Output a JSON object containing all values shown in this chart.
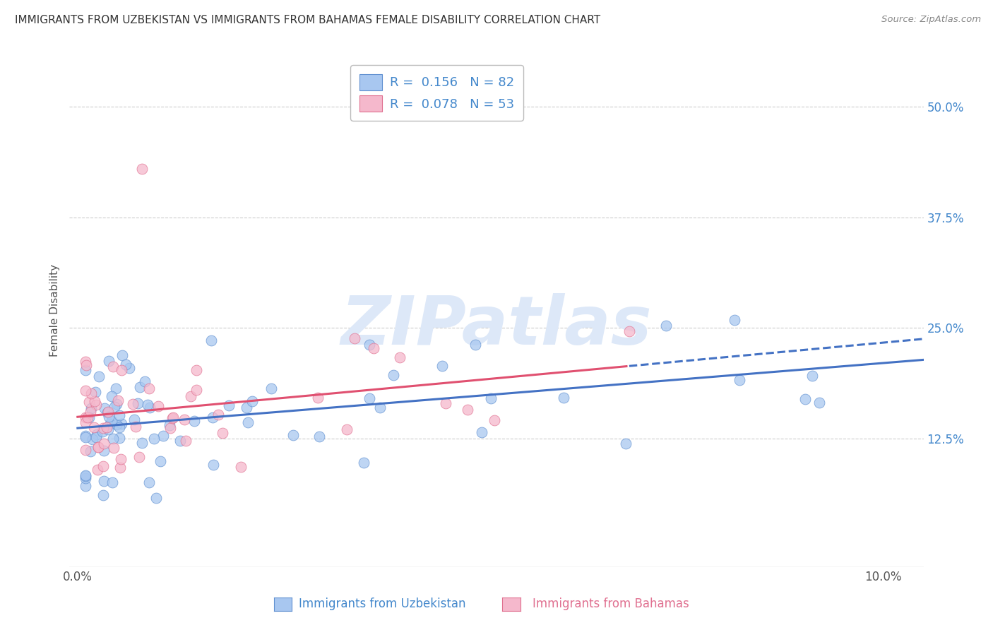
{
  "title": "IMMIGRANTS FROM UZBEKISTAN VS IMMIGRANTS FROM BAHAMAS FEMALE DISABILITY CORRELATION CHART",
  "source": "Source: ZipAtlas.com",
  "ylabel": "Female Disability",
  "ytick_vals": [
    0.125,
    0.25,
    0.375,
    0.5
  ],
  "ytick_labels": [
    "12.5%",
    "25.0%",
    "37.5%",
    "50.0%"
  ],
  "xtick_vals": [
    0.0,
    0.025,
    0.05,
    0.075,
    0.1
  ],
  "xtick_labels": [
    "0.0%",
    "",
    "",
    "",
    "10.0%"
  ],
  "xlim": [
    -0.001,
    0.105
  ],
  "ylim": [
    -0.02,
    0.56
  ],
  "legend_r1": "R =  0.156",
  "legend_n1": "N = 82",
  "legend_r2": "R =  0.078",
  "legend_n2": "N = 53",
  "color_uz_fill": "#a8c7f0",
  "color_uz_edge": "#6090d0",
  "color_bh_fill": "#f5b8cc",
  "color_bh_edge": "#e07090",
  "color_uz_line": "#4472c4",
  "color_bh_line": "#e05070",
  "watermark_color": "#dde8f8",
  "watermark_text": "ZIPatlas",
  "label_uz": "Immigrants from Uzbekistan",
  "label_bh": "Immigrants from Bahamas",
  "grid_color": "#cccccc",
  "title_color": "#333333",
  "axis_label_color": "#4488cc",
  "source_color": "#888888"
}
